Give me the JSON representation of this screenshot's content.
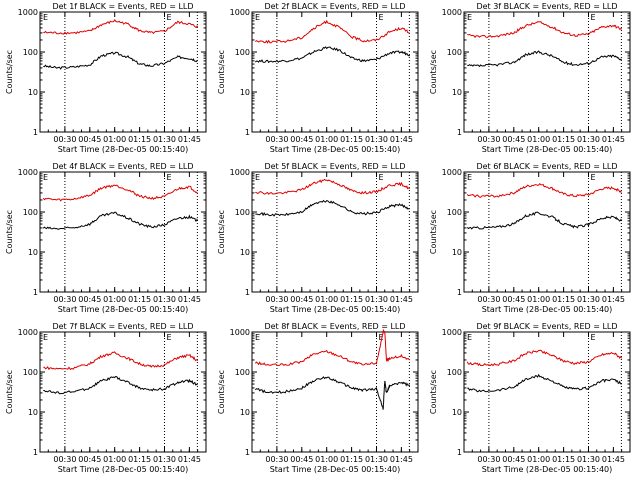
{
  "colors": {
    "events": "#000000",
    "lld": "#e00000",
    "axes": "#000000"
  },
  "chart_data": [
    {
      "type": "line",
      "title": "Det 1f BLACK = Events, RED = LLD",
      "xlabel": "Start Time (28-Dec-05 00:15:40)",
      "ylabel": "Counts/sec",
      "x_ticks": [
        "00:30",
        "00:45",
        "01:00",
        "01:15",
        "01:30",
        "01:45"
      ],
      "y_ticks": [
        "1",
        "10",
        "100",
        "1000"
      ],
      "ylim": [
        1,
        1000
      ],
      "yscale": "log",
      "markers": [
        "E",
        "E"
      ],
      "series": [
        {
          "name": "Events",
          "x": [
            "00:17",
            "00:25",
            "00:35",
            "00:45",
            "00:52",
            "01:00",
            "01:08",
            "01:15",
            "01:22",
            "01:30",
            "01:38",
            "01:45",
            "01:50"
          ],
          "values": [
            45,
            40,
            42,
            48,
            80,
            95,
            75,
            50,
            45,
            52,
            75,
            70,
            60
          ]
        },
        {
          "name": "LLD",
          "x": [
            "00:17",
            "00:25",
            "00:35",
            "00:45",
            "00:52",
            "01:00",
            "01:08",
            "01:15",
            "01:22",
            "01:30",
            "01:38",
            "01:45",
            "01:50"
          ],
          "values": [
            310,
            300,
            300,
            330,
            480,
            600,
            500,
            340,
            300,
            330,
            560,
            500,
            420
          ]
        }
      ]
    },
    {
      "type": "line",
      "title": "Det 2f BLACK = Events, RED = LLD",
      "xlabel": "Start Time (28-Dec-05 00:15:40)",
      "ylabel": "Counts/sec",
      "x_ticks": [
        "00:30",
        "00:45",
        "01:00",
        "01:15",
        "01:30",
        "01:45"
      ],
      "y_ticks": [
        "1",
        "10",
        "100",
        "1000"
      ],
      "ylim": [
        1,
        1000
      ],
      "yscale": "log",
      "markers": [
        "E",
        "E"
      ],
      "series": [
        {
          "name": "Events",
          "x": [
            "00:17",
            "00:25",
            "00:35",
            "00:45",
            "00:52",
            "01:00",
            "01:08",
            "01:15",
            "01:22",
            "01:30",
            "01:38",
            "01:45",
            "01:50"
          ],
          "values": [
            60,
            58,
            60,
            70,
            100,
            130,
            110,
            70,
            60,
            65,
            95,
            100,
            85
          ]
        },
        {
          "name": "LLD",
          "x": [
            "00:17",
            "00:25",
            "00:35",
            "00:45",
            "00:52",
            "01:00",
            "01:08",
            "01:15",
            "01:22",
            "01:30",
            "01:38",
            "01:45",
            "01:50"
          ],
          "values": [
            190,
            180,
            185,
            230,
            380,
            580,
            400,
            240,
            190,
            200,
            320,
            400,
            300
          ]
        }
      ]
    },
    {
      "type": "line",
      "title": "Det 3f BLACK = Events, RED = LLD",
      "xlabel": "Start Time (28-Dec-05 00:15:40)",
      "ylabel": "Counts/sec",
      "x_ticks": [
        "00:30",
        "00:45",
        "01:00",
        "01:15",
        "01:30",
        "01:45"
      ],
      "y_ticks": [
        "1",
        "10",
        "100",
        "1000"
      ],
      "ylim": [
        1,
        1000
      ],
      "yscale": "log",
      "markers": [
        "E",
        "E"
      ],
      "series": [
        {
          "name": "Events",
          "x": [
            "00:17",
            "00:25",
            "00:35",
            "00:45",
            "00:52",
            "01:00",
            "01:08",
            "01:15",
            "01:22",
            "01:30",
            "01:38",
            "01:45",
            "01:50"
          ],
          "values": [
            45,
            45,
            48,
            55,
            85,
            100,
            80,
            55,
            48,
            52,
            75,
            80,
            65
          ]
        },
        {
          "name": "LLD",
          "x": [
            "00:17",
            "00:25",
            "00:35",
            "00:45",
            "00:52",
            "01:00",
            "01:08",
            "01:15",
            "01:22",
            "01:30",
            "01:38",
            "01:45",
            "01:50"
          ],
          "values": [
            260,
            240,
            250,
            300,
            450,
            560,
            420,
            300,
            260,
            280,
            420,
            460,
            370
          ]
        }
      ]
    },
    {
      "type": "line",
      "title": "Det 4f BLACK = Events, RED = LLD",
      "xlabel": "Start Time (28-Dec-05 00:15:40)",
      "ylabel": "Counts/sec",
      "x_ticks": [
        "00:30",
        "00:45",
        "01:00",
        "01:15",
        "01:30",
        "01:45"
      ],
      "y_ticks": [
        "1",
        "10",
        "100",
        "1000"
      ],
      "ylim": [
        1,
        1000
      ],
      "yscale": "log",
      "markers": [
        "E",
        "E"
      ],
      "series": [
        {
          "name": "Events",
          "x": [
            "00:17",
            "00:25",
            "00:35",
            "00:45",
            "00:52",
            "01:00",
            "01:08",
            "01:15",
            "01:22",
            "01:30",
            "01:38",
            "01:45",
            "01:50"
          ],
          "values": [
            40,
            38,
            40,
            50,
            80,
            95,
            70,
            50,
            42,
            48,
            70,
            75,
            60
          ]
        },
        {
          "name": "LLD",
          "x": [
            "00:17",
            "00:25",
            "00:35",
            "00:45",
            "00:52",
            "01:00",
            "01:08",
            "01:15",
            "01:22",
            "01:30",
            "01:38",
            "01:45",
            "01:50"
          ],
          "values": [
            220,
            200,
            210,
            260,
            400,
            470,
            360,
            250,
            220,
            240,
            380,
            430,
            300
          ]
        }
      ]
    },
    {
      "type": "line",
      "title": "Det 5f BLACK = Events, RED = LLD",
      "xlabel": "Start Time (28-Dec-05 00:15:40)",
      "ylabel": "Counts/sec",
      "x_ticks": [
        "00:30",
        "00:45",
        "01:00",
        "01:15",
        "01:30",
        "01:45"
      ],
      "y_ticks": [
        "1",
        "10",
        "100",
        "1000"
      ],
      "ylim": [
        1,
        1000
      ],
      "yscale": "log",
      "markers": [
        "E",
        "E"
      ],
      "series": [
        {
          "name": "Events",
          "x": [
            "00:17",
            "00:25",
            "00:35",
            "00:45",
            "00:52",
            "01:00",
            "01:08",
            "01:15",
            "01:22",
            "01:30",
            "01:38",
            "01:45",
            "01:50"
          ],
          "values": [
            95,
            85,
            85,
            100,
            160,
            190,
            150,
            100,
            90,
            95,
            140,
            150,
            120
          ]
        },
        {
          "name": "LLD",
          "x": [
            "00:17",
            "00:25",
            "00:35",
            "00:45",
            "00:52",
            "01:00",
            "01:08",
            "01:15",
            "01:22",
            "01:30",
            "01:38",
            "01:45",
            "01:50"
          ],
          "values": [
            320,
            290,
            300,
            360,
            520,
            650,
            480,
            340,
            300,
            320,
            470,
            500,
            380
          ]
        }
      ]
    },
    {
      "type": "line",
      "title": "Det 6f BLACK = Events, RED = LLD",
      "xlabel": "Start Time (28-Dec-05 00:15:40)",
      "ylabel": "Counts/sec",
      "x_ticks": [
        "00:30",
        "00:45",
        "01:00",
        "01:15",
        "01:30",
        "01:45"
      ],
      "y_ticks": [
        "1",
        "10",
        "100",
        "1000"
      ],
      "ylim": [
        1,
        1000
      ],
      "yscale": "log",
      "markers": [
        "E",
        "E"
      ],
      "series": [
        {
          "name": "Events",
          "x": [
            "00:17",
            "00:25",
            "00:35",
            "00:45",
            "00:52",
            "01:00",
            "01:08",
            "01:15",
            "01:22",
            "01:30",
            "01:38",
            "01:45",
            "01:50"
          ],
          "values": [
            40,
            40,
            42,
            50,
            80,
            95,
            75,
            50,
            42,
            48,
            70,
            75,
            60
          ]
        },
        {
          "name": "LLD",
          "x": [
            "00:17",
            "00:25",
            "00:35",
            "00:45",
            "00:52",
            "01:00",
            "01:08",
            "01:15",
            "01:22",
            "01:30",
            "01:38",
            "01:45",
            "01:50"
          ],
          "values": [
            260,
            250,
            250,
            300,
            430,
            500,
            390,
            280,
            250,
            270,
            380,
            400,
            320
          ]
        }
      ]
    },
    {
      "type": "line",
      "title": "Det 7f BLACK = Events, RED = LLD",
      "xlabel": "Start Time (28-Dec-05 00:15:40)",
      "ylabel": "Counts/sec",
      "x_ticks": [
        "00:30",
        "00:45",
        "01:00",
        "01:15",
        "01:30",
        "01:45"
      ],
      "y_ticks": [
        "1",
        "10",
        "100",
        "1000"
      ],
      "ylim": [
        1,
        1000
      ],
      "yscale": "log",
      "markers": [
        "E",
        "E"
      ],
      "series": [
        {
          "name": "Events",
          "x": [
            "00:17",
            "00:25",
            "00:35",
            "00:45",
            "00:52",
            "01:00",
            "01:08",
            "01:15",
            "01:22",
            "01:30",
            "01:38",
            "01:45",
            "01:50"
          ],
          "values": [
            35,
            30,
            32,
            40,
            60,
            75,
            55,
            40,
            35,
            38,
            55,
            60,
            48
          ]
        },
        {
          "name": "LLD",
          "x": [
            "00:17",
            "00:25",
            "00:35",
            "00:45",
            "00:52",
            "01:00",
            "01:08",
            "01:15",
            "01:22",
            "01:30",
            "01:38",
            "01:45",
            "01:50"
          ],
          "values": [
            130,
            120,
            125,
            160,
            250,
            300,
            220,
            160,
            135,
            150,
            230,
            260,
            190
          ]
        }
      ]
    },
    {
      "type": "line",
      "title": "Det 8f BLACK = Events, RED = LLD",
      "xlabel": "Start Time (28-Dec-05 00:15:40)",
      "ylabel": "Counts/sec",
      "x_ticks": [
        "00:30",
        "00:45",
        "01:00",
        "01:15",
        "01:30",
        "01:45"
      ],
      "y_ticks": [
        "1",
        "10",
        "100",
        "1000"
      ],
      "ylim": [
        1,
        1000
      ],
      "yscale": "log",
      "markers": [
        "E",
        "E"
      ],
      "series": [
        {
          "name": "Events",
          "x": [
            "00:17",
            "00:25",
            "00:35",
            "00:45",
            "00:52",
            "01:00",
            "01:08",
            "01:15",
            "01:22",
            "01:30",
            "01:34",
            "01:35",
            "01:36",
            "01:38",
            "01:45",
            "01:50"
          ],
          "values": [
            38,
            30,
            32,
            40,
            60,
            75,
            55,
            40,
            35,
            38,
            12,
            60,
            30,
            45,
            55,
            45
          ]
        },
        {
          "name": "LLD",
          "x": [
            "00:17",
            "00:25",
            "00:35",
            "00:45",
            "00:52",
            "01:00",
            "01:08",
            "01:15",
            "01:22",
            "01:30",
            "01:34",
            "01:35",
            "01:36",
            "01:38",
            "01:45",
            "01:50"
          ],
          "values": [
            170,
            150,
            150,
            180,
            280,
            330,
            250,
            180,
            150,
            170,
            1000,
            1000,
            200,
            220,
            250,
            200
          ]
        }
      ]
    },
    {
      "type": "line",
      "title": "Det 9f BLACK = Events, RED = LLD",
      "xlabel": "Start Time (28-Dec-05 00:15:40)",
      "ylabel": "Counts/sec",
      "x_ticks": [
        "00:30",
        "00:45",
        "01:00",
        "01:15",
        "01:30",
        "01:45"
      ],
      "y_ticks": [
        "1",
        "10",
        "100",
        "1000"
      ],
      "ylim": [
        1,
        1000
      ],
      "yscale": "log",
      "markers": [
        "E",
        "E"
      ],
      "series": [
        {
          "name": "Events",
          "x": [
            "00:17",
            "00:25",
            "00:35",
            "00:45",
            "00:52",
            "01:00",
            "01:08",
            "01:15",
            "01:22",
            "01:30",
            "01:38",
            "01:45",
            "01:50"
          ],
          "values": [
            38,
            33,
            35,
            42,
            65,
            80,
            60,
            42,
            37,
            40,
            60,
            65,
            50
          ]
        },
        {
          "name": "LLD",
          "x": [
            "00:17",
            "00:25",
            "00:35",
            "00:45",
            "00:52",
            "01:00",
            "01:08",
            "01:15",
            "01:22",
            "01:30",
            "01:38",
            "01:45",
            "01:50"
          ],
          "values": [
            170,
            150,
            155,
            190,
            290,
            340,
            260,
            190,
            165,
            180,
            270,
            300,
            220
          ]
        }
      ]
    }
  ]
}
